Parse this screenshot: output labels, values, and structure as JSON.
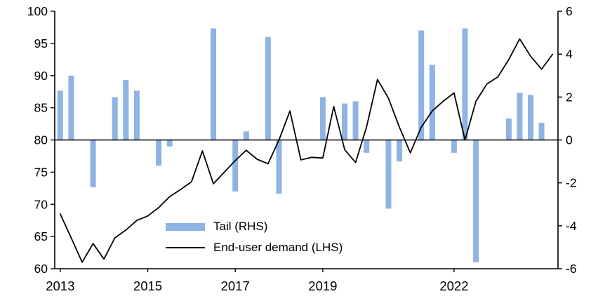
{
  "chart_data": {
    "type": "bar+line",
    "title": "",
    "x": [
      "2013Q1",
      "2013Q2",
      "2013Q3",
      "2013Q4",
      "2014Q1",
      "2014Q2",
      "2014Q3",
      "2014Q4",
      "2015Q1",
      "2015Q2",
      "2015Q3",
      "2015Q4",
      "2016Q1",
      "2016Q2",
      "2016Q3",
      "2016Q4",
      "2017Q1",
      "2017Q2",
      "2017Q3",
      "2017Q4",
      "2018Q1",
      "2018Q2",
      "2018Q3",
      "2018Q4",
      "2019Q1",
      "2019Q2",
      "2019Q3",
      "2019Q4",
      "2020Q1",
      "2020Q2",
      "2020Q3",
      "2020Q4",
      "2021Q1",
      "2021Q2",
      "2021Q3",
      "2021Q4",
      "2022Q1",
      "2022Q2",
      "2022Q3",
      "2022Q4",
      "2023Q1",
      "2023Q2",
      "2023Q3",
      "2023Q4",
      "2024Q1",
      "2024Q2"
    ],
    "x_tick_labels": [
      "2013",
      "2015",
      "2017",
      "2019",
      "2022"
    ],
    "x_tick_indices": [
      0,
      8,
      16,
      24,
      36
    ],
    "left_axis": {
      "min": 60,
      "max": 100,
      "ticks": [
        60,
        65,
        70,
        75,
        80,
        85,
        90,
        95,
        100
      ]
    },
    "right_axis": {
      "min": -6,
      "max": 6,
      "ticks": [
        -6,
        -4,
        -2,
        0,
        2,
        4,
        6
      ]
    },
    "zero_baseline_left": 80,
    "grid": false,
    "legend_position": "inside-bottom-left",
    "series": [
      {
        "name": "Tail (RHS)",
        "type": "bar",
        "axis": "right",
        "color": "#8DB4E2",
        "values": [
          2.3,
          3.0,
          0,
          -2.2,
          0,
          2.0,
          2.8,
          2.3,
          0,
          -1.2,
          -0.3,
          0,
          0,
          0,
          5.2,
          0,
          -2.4,
          0.4,
          0,
          4.8,
          -2.5,
          0,
          0,
          0,
          2.0,
          0,
          1.7,
          1.8,
          -0.6,
          0,
          -3.2,
          -1.0,
          0,
          5.1,
          3.5,
          0,
          -0.6,
          5.2,
          -5.7,
          0,
          0,
          1.0,
          2.2,
          2.1,
          0.8,
          0
        ]
      },
      {
        "name": "End-user demand (LHS)",
        "type": "line",
        "axis": "left",
        "color": "#000000",
        "values": [
          68.5,
          64.8,
          61.0,
          63.9,
          61.5,
          64.8,
          66.0,
          67.5,
          68.2,
          69.5,
          71.2,
          72.3,
          73.5,
          78.3,
          73.2,
          75.0,
          76.8,
          78.4,
          77.0,
          76.3,
          80.0,
          84.5,
          76.9,
          77.3,
          77.2,
          85.2,
          78.5,
          76.5,
          82.0,
          89.4,
          86.5,
          82.0,
          78.0,
          82.0,
          84.5,
          86.0,
          87.3,
          80.0,
          86.0,
          88.7,
          89.8,
          92.5,
          95.7,
          93.0,
          91.0,
          93.3
        ]
      }
    ]
  }
}
